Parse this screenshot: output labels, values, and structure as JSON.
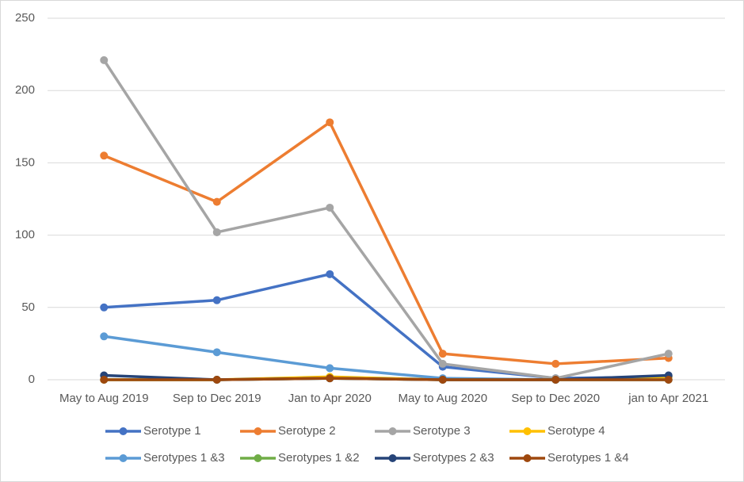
{
  "chart_data": {
    "type": "line",
    "categories": [
      "May to Aug 2019",
      "Sep to Dec 2019",
      "Jan to Apr 2020",
      "May to Aug 2020",
      "Sep to Dec 2020",
      "jan to Apr 2021"
    ],
    "series": [
      {
        "name": "Serotype 1",
        "color": "#4472c4",
        "values": [
          50,
          55,
          73,
          9,
          1,
          2
        ]
      },
      {
        "name": "Serotype 2",
        "color": "#ed7d31",
        "values": [
          155,
          123,
          178,
          18,
          11,
          15
        ]
      },
      {
        "name": "Serotype 3",
        "color": "#a5a5a5",
        "values": [
          221,
          102,
          119,
          11,
          1,
          18
        ]
      },
      {
        "name": "Serotype 4",
        "color": "#ffc000",
        "values": [
          0,
          0,
          2,
          0,
          0,
          2
        ]
      },
      {
        "name": "Serotypes 1 &3",
        "color": "#5b9bd5",
        "values": [
          30,
          19,
          8,
          1,
          0,
          0
        ]
      },
      {
        "name": "Serotypes 1 &2",
        "color": "#70ad47",
        "values": [
          0,
          0,
          1,
          0,
          0,
          0
        ]
      },
      {
        "name": "Serotypes 2 &3",
        "color": "#264478",
        "values": [
          3,
          0,
          1,
          0,
          0,
          3
        ]
      },
      {
        "name": "Serotypes 1 &4",
        "color": "#9e480e",
        "values": [
          0,
          0,
          1,
          0,
          0,
          0
        ]
      }
    ],
    "ylim": [
      0,
      250
    ],
    "yticks": [
      0,
      50,
      100,
      150,
      200,
      250
    ],
    "grid": true,
    "legend": "bottom"
  }
}
